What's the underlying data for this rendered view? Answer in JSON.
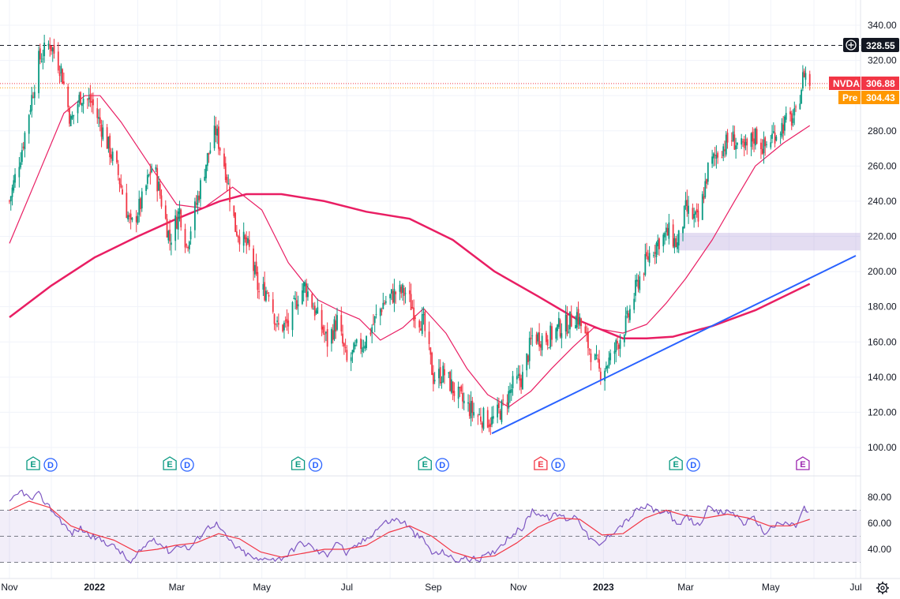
{
  "symbol": "NVDA",
  "price_tags": {
    "crosshair": {
      "value": "328.55",
      "color": "#131722"
    },
    "last": {
      "label": "NVDA",
      "value": "306.88",
      "color": "#f23645"
    },
    "pre": {
      "label": "Pre",
      "value": "304.43",
      "color": "#ff9800"
    }
  },
  "icons": {
    "add_alert": "plus-circle-icon",
    "settings": "gear-icon"
  },
  "chart_data": {
    "type": "candlestick",
    "price_axis": {
      "min": 100,
      "max": 340,
      "ticks": [
        340,
        320,
        300,
        280,
        260,
        240,
        220,
        200,
        180,
        160,
        140,
        120,
        100
      ],
      "tick_labels": [
        "340.00",
        "320.00",
        "300.00",
        "280.00",
        "260.00",
        "240.00",
        "220.00",
        "200.00",
        "180.00",
        "160.00",
        "140.00",
        "120.00",
        "100.00"
      ]
    },
    "time_axis": {
      "labels": [
        "Nov",
        "2022",
        "Mar",
        "May",
        "Jul",
        "Sep",
        "Nov",
        "2023",
        "Mar",
        "May",
        "Jul"
      ],
      "start": "2021-11-01",
      "end": "2023-07-01"
    },
    "price_path": [
      [
        "2021-11-01",
        240
      ],
      [
        "2021-11-10",
        270
      ],
      [
        "2021-11-22",
        320
      ],
      [
        "2021-11-30",
        330
      ],
      [
        "2021-12-08",
        315
      ],
      [
        "2021-12-15",
        285
      ],
      [
        "2021-12-22",
        300
      ],
      [
        "2021-12-30",
        296
      ],
      [
        "2022-01-08",
        278
      ],
      [
        "2022-01-18",
        255
      ],
      [
        "2022-01-27",
        225
      ],
      [
        "2022-02-04",
        240
      ],
      [
        "2022-02-12",
        262
      ],
      [
        "2022-02-24",
        218
      ],
      [
        "2022-03-03",
        235
      ],
      [
        "2022-03-08",
        215
      ],
      [
        "2022-03-22",
        262
      ],
      [
        "2022-03-29",
        280
      ],
      [
        "2022-04-05",
        258
      ],
      [
        "2022-04-12",
        225
      ],
      [
        "2022-04-22",
        212
      ],
      [
        "2022-04-29",
        188
      ],
      [
        "2022-05-06",
        190
      ],
      [
        "2022-05-12",
        168
      ],
      [
        "2022-05-20",
        170
      ],
      [
        "2022-05-27",
        186
      ],
      [
        "2022-06-01",
        192
      ],
      [
        "2022-06-08",
        178
      ],
      [
        "2022-06-17",
        160
      ],
      [
        "2022-06-24",
        172
      ],
      [
        "2022-07-01",
        148
      ],
      [
        "2022-07-08",
        156
      ],
      [
        "2022-07-15",
        162
      ],
      [
        "2022-07-27",
        182
      ],
      [
        "2022-08-05",
        188
      ],
      [
        "2022-08-12",
        188
      ],
      [
        "2022-08-18",
        178
      ],
      [
        "2022-08-25",
        170
      ],
      [
        "2022-09-01",
        140
      ],
      [
        "2022-09-09",
        142
      ],
      [
        "2022-09-16",
        132
      ],
      [
        "2022-09-23",
        125
      ],
      [
        "2022-10-03",
        118
      ],
      [
        "2022-10-13",
        115
      ],
      [
        "2022-10-20",
        122
      ],
      [
        "2022-10-28",
        135
      ],
      [
        "2022-11-04",
        140
      ],
      [
        "2022-11-11",
        163
      ],
      [
        "2022-11-22",
        162
      ],
      [
        "2022-11-30",
        168
      ],
      [
        "2022-12-06",
        170
      ],
      [
        "2022-12-13",
        176
      ],
      [
        "2022-12-20",
        160
      ],
      [
        "2022-12-29",
        143
      ],
      [
        "2023-01-06",
        150
      ],
      [
        "2023-01-18",
        172
      ],
      [
        "2023-01-26",
        195
      ],
      [
        "2023-02-03",
        210
      ],
      [
        "2023-02-10",
        218
      ],
      [
        "2023-02-17",
        222
      ],
      [
        "2023-02-23",
        215
      ],
      [
        "2023-03-01",
        235
      ],
      [
        "2023-03-10",
        228
      ],
      [
        "2023-03-17",
        258
      ],
      [
        "2023-03-24",
        268
      ],
      [
        "2023-04-03",
        276
      ],
      [
        "2023-04-12",
        268
      ],
      [
        "2023-04-20",
        278
      ],
      [
        "2023-04-26",
        270
      ],
      [
        "2023-05-03",
        278
      ],
      [
        "2023-05-12",
        285
      ],
      [
        "2023-05-19",
        288
      ],
      [
        "2023-05-25",
        314
      ],
      [
        "2023-05-29",
        306.88
      ]
    ],
    "moving_average_200": [
      [
        "2021-11-01",
        174
      ],
      [
        "2021-12-01",
        192
      ],
      [
        "2022-01-01",
        208
      ],
      [
        "2022-02-01",
        220
      ],
      [
        "2022-03-01",
        230
      ],
      [
        "2022-04-01",
        240
      ],
      [
        "2022-04-20",
        244
      ],
      [
        "2022-05-15",
        244
      ],
      [
        "2022-06-15",
        240
      ],
      [
        "2022-07-15",
        234
      ],
      [
        "2022-08-15",
        230
      ],
      [
        "2022-09-15",
        218
      ],
      [
        "2022-10-15",
        200
      ],
      [
        "2022-11-15",
        186
      ],
      [
        "2022-12-15",
        172
      ],
      [
        "2023-01-15",
        162
      ],
      [
        "2023-02-01",
        162
      ],
      [
        "2023-02-20",
        163
      ],
      [
        "2023-03-20",
        169
      ],
      [
        "2023-04-20",
        178
      ],
      [
        "2023-05-29",
        193
      ]
    ],
    "moving_average_50": [
      [
        "2021-11-01",
        216
      ],
      [
        "2021-11-20",
        252
      ],
      [
        "2021-12-10",
        290
      ],
      [
        "2021-12-25",
        300
      ],
      [
        "2022-01-05",
        300
      ],
      [
        "2022-01-20",
        285
      ],
      [
        "2022-02-10",
        260
      ],
      [
        "2022-03-01",
        238
      ],
      [
        "2022-03-20",
        236
      ],
      [
        "2022-04-10",
        248
      ],
      [
        "2022-05-01",
        235
      ],
      [
        "2022-05-20",
        205
      ],
      [
        "2022-06-10",
        184
      ],
      [
        "2022-06-25",
        178
      ],
      [
        "2022-07-10",
        173
      ],
      [
        "2022-07-25",
        161
      ],
      [
        "2022-08-10",
        168
      ],
      [
        "2022-08-25",
        179
      ],
      [
        "2022-09-10",
        165
      ],
      [
        "2022-09-25",
        145
      ],
      [
        "2022-10-10",
        130
      ],
      [
        "2022-10-25",
        123
      ],
      [
        "2022-11-10",
        132
      ],
      [
        "2022-11-25",
        145
      ],
      [
        "2022-12-10",
        157
      ],
      [
        "2022-12-25",
        168
      ],
      [
        "2023-01-15",
        165
      ],
      [
        "2023-02-01",
        170
      ],
      [
        "2023-02-15",
        182
      ],
      [
        "2023-03-01",
        196
      ],
      [
        "2023-03-20",
        218
      ],
      [
        "2023-04-05",
        240
      ],
      [
        "2023-04-20",
        260
      ],
      [
        "2023-05-10",
        273
      ],
      [
        "2023-05-29",
        283
      ]
    ],
    "trendline": [
      [
        "2022-10-13",
        108
      ],
      [
        "2023-07-01",
        209
      ]
    ],
    "highlight_zone": {
      "from": "2023-02-24",
      "to": "2023-07-01",
      "low": 212,
      "high": 222
    },
    "events": [
      {
        "date": "2021-11-18",
        "marks": [
          "E",
          "D"
        ],
        "e_color": "#089981"
      },
      {
        "date": "2022-02-24",
        "marks": [
          "E",
          "D"
        ],
        "e_color": "#089981"
      },
      {
        "date": "2022-05-27",
        "marks": [
          "E",
          "D"
        ],
        "e_color": "#089981"
      },
      {
        "date": "2022-08-26",
        "marks": [
          "E",
          "D"
        ],
        "e_color": "#089981"
      },
      {
        "date": "2022-11-17",
        "marks": [
          "E",
          "D"
        ],
        "e_color": "#f23645"
      },
      {
        "date": "2023-02-22",
        "marks": [
          "E",
          "D"
        ],
        "e_color": "#089981"
      },
      {
        "date": "2023-05-24",
        "marks": [
          "E"
        ],
        "e_color": "#9c27b0"
      }
    ],
    "rsi": {
      "ticks": [
        80,
        60,
        40
      ],
      "tick_labels": [
        "80.00",
        "60.00",
        "40.00"
      ],
      "upper": 70,
      "middle": 50,
      "lower": 30,
      "path": [
        [
          "2021-11-01",
          75
        ],
        [
          "2021-11-05",
          80
        ],
        [
          "2021-11-10",
          85
        ],
        [
          "2021-11-16",
          78
        ],
        [
          "2021-11-22",
          82
        ],
        [
          "2021-11-30",
          72
        ],
        [
          "2021-12-08",
          62
        ],
        [
          "2021-12-15",
          52
        ],
        [
          "2021-12-22",
          56
        ],
        [
          "2021-12-30",
          50
        ],
        [
          "2022-01-08",
          46
        ],
        [
          "2022-01-18",
          40
        ],
        [
          "2022-01-27",
          29
        ],
        [
          "2022-02-04",
          40
        ],
        [
          "2022-02-12",
          49
        ],
        [
          "2022-02-24",
          38
        ],
        [
          "2022-03-03",
          44
        ],
        [
          "2022-03-10",
          40
        ],
        [
          "2022-03-22",
          56
        ],
        [
          "2022-03-29",
          60
        ],
        [
          "2022-04-05",
          50
        ],
        [
          "2022-04-12",
          42
        ],
        [
          "2022-04-22",
          35
        ],
        [
          "2022-04-29",
          31
        ],
        [
          "2022-05-06",
          34
        ],
        [
          "2022-05-12",
          32
        ],
        [
          "2022-05-20",
          36
        ],
        [
          "2022-05-27",
          44
        ],
        [
          "2022-06-03",
          44
        ],
        [
          "2022-06-10",
          38
        ],
        [
          "2022-06-17",
          36
        ],
        [
          "2022-06-24",
          47
        ],
        [
          "2022-07-01",
          36
        ],
        [
          "2022-07-08",
          43
        ],
        [
          "2022-07-15",
          48
        ],
        [
          "2022-07-27",
          60
        ],
        [
          "2022-08-05",
          63
        ],
        [
          "2022-08-12",
          60
        ],
        [
          "2022-08-18",
          52
        ],
        [
          "2022-08-25",
          47
        ],
        [
          "2022-09-01",
          36
        ],
        [
          "2022-09-09",
          38
        ],
        [
          "2022-09-16",
          31
        ],
        [
          "2022-09-23",
          33
        ],
        [
          "2022-10-03",
          32
        ],
        [
          "2022-10-13",
          37
        ],
        [
          "2022-10-20",
          44
        ],
        [
          "2022-10-28",
          52
        ],
        [
          "2022-11-04",
          56
        ],
        [
          "2022-11-11",
          70
        ],
        [
          "2022-11-22",
          64
        ],
        [
          "2022-11-30",
          67
        ],
        [
          "2022-12-06",
          63
        ],
        [
          "2022-12-13",
          66
        ],
        [
          "2022-12-20",
          51
        ],
        [
          "2022-12-29",
          42
        ],
        [
          "2023-01-06",
          52
        ],
        [
          "2023-01-18",
          62
        ],
        [
          "2023-01-26",
          71
        ],
        [
          "2023-02-03",
          73
        ],
        [
          "2023-02-10",
          67
        ],
        [
          "2023-02-17",
          70
        ],
        [
          "2023-02-23",
          56
        ],
        [
          "2023-03-01",
          65
        ],
        [
          "2023-03-10",
          58
        ],
        [
          "2023-03-17",
          71
        ],
        [
          "2023-03-24",
          68
        ],
        [
          "2023-04-03",
          69
        ],
        [
          "2023-04-12",
          60
        ],
        [
          "2023-04-20",
          64
        ],
        [
          "2023-04-26",
          52
        ],
        [
          "2023-05-03",
          58
        ],
        [
          "2023-05-12",
          60
        ],
        [
          "2023-05-19",
          58
        ],
        [
          "2023-05-25",
          72
        ],
        [
          "2023-05-29",
          65
        ]
      ],
      "ma_path": [
        [
          "2021-11-01",
          70
        ],
        [
          "2021-11-15",
          77
        ],
        [
          "2021-11-30",
          72
        ],
        [
          "2021-12-15",
          58
        ],
        [
          "2021-12-30",
          52
        ],
        [
          "2022-01-15",
          47
        ],
        [
          "2022-01-31",
          38
        ],
        [
          "2022-02-15",
          40
        ],
        [
          "2022-02-28",
          43
        ],
        [
          "2022-03-15",
          45
        ],
        [
          "2022-03-31",
          52
        ],
        [
          "2022-04-15",
          48
        ],
        [
          "2022-04-30",
          38
        ],
        [
          "2022-05-15",
          34
        ],
        [
          "2022-05-31",
          37
        ],
        [
          "2022-06-15",
          40
        ],
        [
          "2022-06-30",
          40
        ],
        [
          "2022-07-15",
          43
        ],
        [
          "2022-07-31",
          53
        ],
        [
          "2022-08-15",
          58
        ],
        [
          "2022-08-31",
          50
        ],
        [
          "2022-09-15",
          38
        ],
        [
          "2022-09-30",
          33
        ],
        [
          "2022-10-15",
          35
        ],
        [
          "2022-10-31",
          45
        ],
        [
          "2022-11-15",
          57
        ],
        [
          "2022-11-30",
          64
        ],
        [
          "2022-12-15",
          63
        ],
        [
          "2022-12-31",
          51
        ],
        [
          "2023-01-15",
          52
        ],
        [
          "2023-01-31",
          64
        ],
        [
          "2023-02-15",
          70
        ],
        [
          "2023-02-28",
          66
        ],
        [
          "2023-03-15",
          64
        ],
        [
          "2023-03-31",
          67
        ],
        [
          "2023-04-15",
          64
        ],
        [
          "2023-04-30",
          58
        ],
        [
          "2023-05-15",
          58
        ],
        [
          "2023-05-29",
          63
        ]
      ]
    }
  }
}
